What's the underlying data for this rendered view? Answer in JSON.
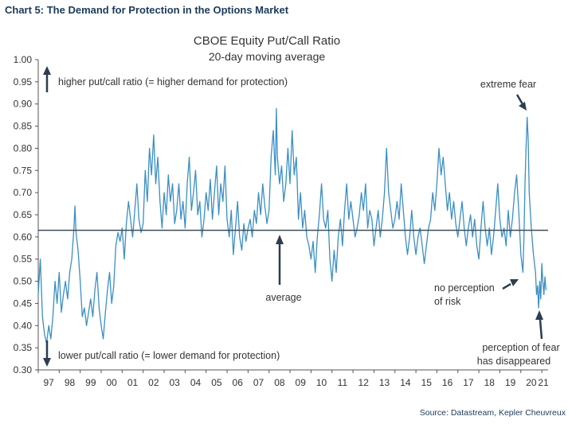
{
  "figure_title": "Chart 5: The Demand for Protection in the Options Market",
  "source": "Source: Datastream, Kepler Cheuvreux",
  "chart_data": {
    "type": "line",
    "title": "CBOE Equity Put/Call Ratio",
    "subtitle": "20-day moving average",
    "xlabel": "",
    "ylabel": "",
    "x_tick_labels": [
      "97",
      "98",
      "99",
      "00",
      "01",
      "02",
      "03",
      "04",
      "05",
      "06",
      "07",
      "08",
      "09",
      "10",
      "11",
      "12",
      "13",
      "14",
      "15",
      "16",
      "17",
      "18",
      "19",
      "20",
      "21"
    ],
    "y_tick_labels": [
      "0.30",
      "0.35",
      "0.40",
      "0.45",
      "0.50",
      "0.55",
      "0.60",
      "0.65",
      "0.70",
      "0.75",
      "0.80",
      "0.85",
      "0.90",
      "0.95",
      "1.00"
    ],
    "xlim": [
      1997.0,
      2021.3
    ],
    "ylim": [
      0.3,
      1.0
    ],
    "grid": false,
    "average": 0.615,
    "colors": {
      "series": "#3a8fc4",
      "average": "#3d4f5c",
      "arrow": "#2c3e50",
      "title": "#1b3a5a"
    },
    "annotations": {
      "higher": "higher put/call ratio (= higher demand for protection)",
      "lower": "lower put/call ratio (= lower demand for protection)",
      "average": "average",
      "extreme_fear": "extreme fear",
      "no_perception_1": "no perception",
      "no_perception_2": "of risk",
      "fear_gone_1": "perception of fear",
      "fear_gone_2": "has disappeared"
    },
    "series": [
      {
        "values": [
          [
            1997.0,
            0.47
          ],
          [
            1997.1,
            0.55
          ],
          [
            1997.2,
            0.42
          ],
          [
            1997.3,
            0.38
          ],
          [
            1997.4,
            0.36
          ],
          [
            1997.5,
            0.4
          ],
          [
            1997.6,
            0.37
          ],
          [
            1997.7,
            0.42
          ],
          [
            1997.8,
            0.5
          ],
          [
            1997.9,
            0.45
          ],
          [
            1998.0,
            0.52
          ],
          [
            1998.1,
            0.43
          ],
          [
            1998.2,
            0.47
          ],
          [
            1998.3,
            0.5
          ],
          [
            1998.4,
            0.46
          ],
          [
            1998.5,
            0.52
          ],
          [
            1998.6,
            0.55
          ],
          [
            1998.7,
            0.62
          ],
          [
            1998.75,
            0.67
          ],
          [
            1998.8,
            0.61
          ],
          [
            1998.9,
            0.57
          ],
          [
            1999.0,
            0.5
          ],
          [
            1999.1,
            0.42
          ],
          [
            1999.2,
            0.44
          ],
          [
            1999.3,
            0.4
          ],
          [
            1999.4,
            0.43
          ],
          [
            1999.5,
            0.46
          ],
          [
            1999.6,
            0.42
          ],
          [
            1999.7,
            0.48
          ],
          [
            1999.8,
            0.52
          ],
          [
            1999.9,
            0.44
          ],
          [
            2000.0,
            0.4
          ],
          [
            2000.1,
            0.37
          ],
          [
            2000.2,
            0.43
          ],
          [
            2000.3,
            0.48
          ],
          [
            2000.4,
            0.52
          ],
          [
            2000.5,
            0.45
          ],
          [
            2000.6,
            0.49
          ],
          [
            2000.7,
            0.58
          ],
          [
            2000.8,
            0.61
          ],
          [
            2000.9,
            0.59
          ],
          [
            2001.0,
            0.62
          ],
          [
            2001.1,
            0.55
          ],
          [
            2001.2,
            0.63
          ],
          [
            2001.3,
            0.68
          ],
          [
            2001.4,
            0.64
          ],
          [
            2001.5,
            0.6
          ],
          [
            2001.6,
            0.66
          ],
          [
            2001.7,
            0.72
          ],
          [
            2001.8,
            0.64
          ],
          [
            2001.9,
            0.61
          ],
          [
            2002.0,
            0.63
          ],
          [
            2002.1,
            0.75
          ],
          [
            2002.2,
            0.68
          ],
          [
            2002.3,
            0.8
          ],
          [
            2002.4,
            0.74
          ],
          [
            2002.5,
            0.83
          ],
          [
            2002.6,
            0.72
          ],
          [
            2002.7,
            0.78
          ],
          [
            2002.8,
            0.68
          ],
          [
            2002.9,
            0.62
          ],
          [
            2003.0,
            0.7
          ],
          [
            2003.1,
            0.65
          ],
          [
            2003.2,
            0.74
          ],
          [
            2003.3,
            0.68
          ],
          [
            2003.4,
            0.72
          ],
          [
            2003.5,
            0.63
          ],
          [
            2003.6,
            0.66
          ],
          [
            2003.7,
            0.72
          ],
          [
            2003.8,
            0.64
          ],
          [
            2003.9,
            0.68
          ],
          [
            2004.0,
            0.62
          ],
          [
            2004.1,
            0.72
          ],
          [
            2004.2,
            0.78
          ],
          [
            2004.3,
            0.66
          ],
          [
            2004.4,
            0.7
          ],
          [
            2004.5,
            0.75
          ],
          [
            2004.6,
            0.65
          ],
          [
            2004.7,
            0.68
          ],
          [
            2004.8,
            0.6
          ],
          [
            2004.9,
            0.64
          ],
          [
            2005.0,
            0.7
          ],
          [
            2005.1,
            0.66
          ],
          [
            2005.2,
            0.73
          ],
          [
            2005.3,
            0.64
          ],
          [
            2005.4,
            0.7
          ],
          [
            2005.5,
            0.76
          ],
          [
            2005.6,
            0.65
          ],
          [
            2005.7,
            0.72
          ],
          [
            2005.8,
            0.68
          ],
          [
            2005.9,
            0.76
          ],
          [
            2006.0,
            0.64
          ],
          [
            2006.1,
            0.6
          ],
          [
            2006.2,
            0.66
          ],
          [
            2006.3,
            0.56
          ],
          [
            2006.4,
            0.62
          ],
          [
            2006.5,
            0.68
          ],
          [
            2006.6,
            0.6
          ],
          [
            2006.7,
            0.57
          ],
          [
            2006.8,
            0.63
          ],
          [
            2006.9,
            0.59
          ],
          [
            2007.0,
            0.62
          ],
          [
            2007.1,
            0.64
          ],
          [
            2007.2,
            0.6
          ],
          [
            2007.3,
            0.66
          ],
          [
            2007.4,
            0.63
          ],
          [
            2007.5,
            0.7
          ],
          [
            2007.6,
            0.65
          ],
          [
            2007.7,
            0.72
          ],
          [
            2007.8,
            0.67
          ],
          [
            2007.9,
            0.63
          ],
          [
            2008.0,
            0.66
          ],
          [
            2008.1,
            0.78
          ],
          [
            2008.2,
            0.84
          ],
          [
            2008.3,
            0.74
          ],
          [
            2008.35,
            0.89
          ],
          [
            2008.4,
            0.78
          ],
          [
            2008.5,
            0.72
          ],
          [
            2008.6,
            0.76
          ],
          [
            2008.7,
            0.68
          ],
          [
            2008.8,
            0.72
          ],
          [
            2008.9,
            0.8
          ],
          [
            2009.0,
            0.72
          ],
          [
            2009.1,
            0.84
          ],
          [
            2009.2,
            0.74
          ],
          [
            2009.3,
            0.78
          ],
          [
            2009.4,
            0.64
          ],
          [
            2009.5,
            0.7
          ],
          [
            2009.6,
            0.62
          ],
          [
            2009.7,
            0.66
          ],
          [
            2009.8,
            0.6
          ],
          [
            2009.9,
            0.58
          ],
          [
            2010.0,
            0.55
          ],
          [
            2010.1,
            0.59
          ],
          [
            2010.2,
            0.52
          ],
          [
            2010.3,
            0.6
          ],
          [
            2010.4,
            0.65
          ],
          [
            2010.5,
            0.72
          ],
          [
            2010.6,
            0.64
          ],
          [
            2010.7,
            0.62
          ],
          [
            2010.8,
            0.66
          ],
          [
            2010.9,
            0.55
          ],
          [
            2011.0,
            0.5
          ],
          [
            2011.1,
            0.57
          ],
          [
            2011.2,
            0.52
          ],
          [
            2011.3,
            0.6
          ],
          [
            2011.4,
            0.64
          ],
          [
            2011.5,
            0.58
          ],
          [
            2011.6,
            0.66
          ],
          [
            2011.7,
            0.72
          ],
          [
            2011.8,
            0.64
          ],
          [
            2011.9,
            0.68
          ],
          [
            2012.0,
            0.64
          ],
          [
            2012.1,
            0.6
          ],
          [
            2012.2,
            0.62
          ],
          [
            2012.3,
            0.65
          ],
          [
            2012.4,
            0.7
          ],
          [
            2012.5,
            0.66
          ],
          [
            2012.6,
            0.72
          ],
          [
            2012.7,
            0.62
          ],
          [
            2012.8,
            0.66
          ],
          [
            2012.9,
            0.64
          ],
          [
            2013.0,
            0.58
          ],
          [
            2013.1,
            0.62
          ],
          [
            2013.2,
            0.66
          ],
          [
            2013.3,
            0.6
          ],
          [
            2013.4,
            0.64
          ],
          [
            2013.5,
            0.7
          ],
          [
            2013.6,
            0.8
          ],
          [
            2013.7,
            0.7
          ],
          [
            2013.8,
            0.66
          ],
          [
            2013.9,
            0.62
          ],
          [
            2014.0,
            0.64
          ],
          [
            2014.1,
            0.68
          ],
          [
            2014.2,
            0.64
          ],
          [
            2014.3,
            0.72
          ],
          [
            2014.4,
            0.66
          ],
          [
            2014.5,
            0.6
          ],
          [
            2014.6,
            0.56
          ],
          [
            2014.7,
            0.6
          ],
          [
            2014.8,
            0.66
          ],
          [
            2014.9,
            0.6
          ],
          [
            2015.0,
            0.56
          ],
          [
            2015.1,
            0.6
          ],
          [
            2015.2,
            0.62
          ],
          [
            2015.3,
            0.58
          ],
          [
            2015.4,
            0.54
          ],
          [
            2015.5,
            0.58
          ],
          [
            2015.6,
            0.62
          ],
          [
            2015.7,
            0.64
          ],
          [
            2015.8,
            0.7
          ],
          [
            2015.9,
            0.66
          ],
          [
            2016.0,
            0.72
          ],
          [
            2016.1,
            0.8
          ],
          [
            2016.2,
            0.74
          ],
          [
            2016.3,
            0.78
          ],
          [
            2016.4,
            0.72
          ],
          [
            2016.5,
            0.66
          ],
          [
            2016.6,
            0.7
          ],
          [
            2016.7,
            0.64
          ],
          [
            2016.8,
            0.68
          ],
          [
            2016.9,
            0.63
          ],
          [
            2017.0,
            0.6
          ],
          [
            2017.1,
            0.64
          ],
          [
            2017.2,
            0.68
          ],
          [
            2017.3,
            0.62
          ],
          [
            2017.4,
            0.58
          ],
          [
            2017.5,
            0.62
          ],
          [
            2017.6,
            0.65
          ],
          [
            2017.7,
            0.6
          ],
          [
            2017.8,
            0.64
          ],
          [
            2017.9,
            0.58
          ],
          [
            2018.0,
            0.55
          ],
          [
            2018.1,
            0.62
          ],
          [
            2018.2,
            0.68
          ],
          [
            2018.3,
            0.62
          ],
          [
            2018.4,
            0.58
          ],
          [
            2018.5,
            0.62
          ],
          [
            2018.6,
            0.56
          ],
          [
            2018.7,
            0.6
          ],
          [
            2018.8,
            0.66
          ],
          [
            2018.9,
            0.72
          ],
          [
            2019.0,
            0.64
          ],
          [
            2019.1,
            0.6
          ],
          [
            2019.2,
            0.62
          ],
          [
            2019.3,
            0.58
          ],
          [
            2019.4,
            0.66
          ],
          [
            2019.5,
            0.6
          ],
          [
            2019.6,
            0.64
          ],
          [
            2019.7,
            0.7
          ],
          [
            2019.8,
            0.74
          ],
          [
            2019.9,
            0.66
          ],
          [
            2020.0,
            0.56
          ],
          [
            2020.05,
            0.54
          ],
          [
            2020.1,
            0.52
          ],
          [
            2020.15,
            0.6
          ],
          [
            2020.2,
            0.72
          ],
          [
            2020.25,
            0.8
          ],
          [
            2020.3,
            0.87
          ],
          [
            2020.35,
            0.82
          ],
          [
            2020.4,
            0.7
          ],
          [
            2020.5,
            0.62
          ],
          [
            2020.6,
            0.56
          ],
          [
            2020.7,
            0.52
          ],
          [
            2020.75,
            0.47
          ],
          [
            2020.8,
            0.49
          ],
          [
            2020.85,
            0.44
          ],
          [
            2020.9,
            0.5
          ],
          [
            2020.95,
            0.46
          ],
          [
            2021.0,
            0.54
          ],
          [
            2021.05,
            0.5
          ],
          [
            2021.1,
            0.47
          ],
          [
            2021.15,
            0.51
          ],
          [
            2021.2,
            0.48
          ]
        ]
      }
    ]
  }
}
